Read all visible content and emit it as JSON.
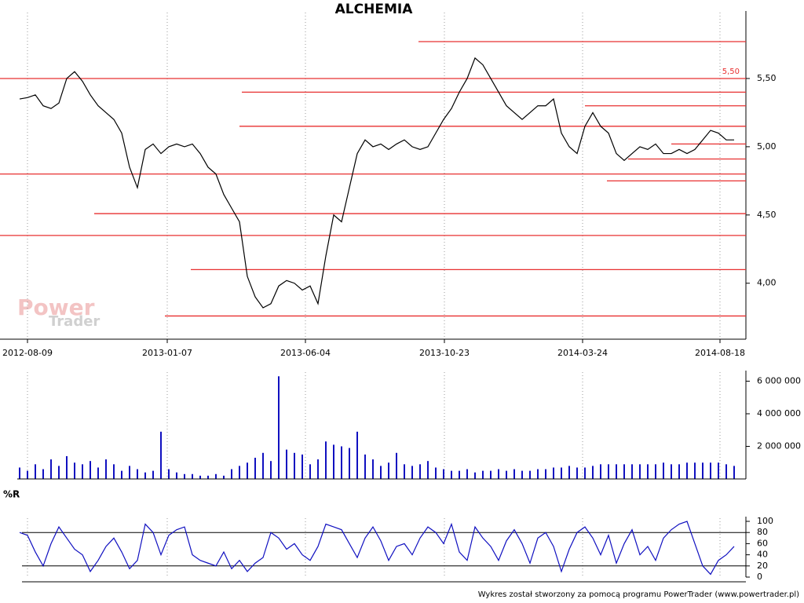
{
  "chart_data": [
    {
      "type": "line",
      "title": "ALCHEMIA",
      "color": "#000000",
      "values": [
        5.35,
        5.36,
        5.38,
        5.3,
        5.28,
        5.32,
        5.5,
        5.55,
        5.48,
        5.38,
        5.3,
        5.25,
        5.2,
        5.1,
        4.85,
        4.7,
        4.98,
        5.02,
        4.95,
        5.0,
        5.02,
        5.0,
        5.02,
        4.95,
        4.85,
        4.8,
        4.65,
        4.55,
        4.45,
        4.05,
        3.9,
        3.82,
        3.85,
        3.98,
        4.02,
        4.0,
        3.95,
        3.98,
        3.85,
        4.2,
        4.5,
        4.45,
        4.7,
        4.95,
        5.05,
        5.0,
        5.02,
        4.98,
        5.02,
        5.05,
        5.0,
        4.98,
        5.0,
        5.1,
        5.2,
        5.28,
        5.4,
        5.5,
        5.65,
        5.6,
        5.5,
        5.4,
        5.3,
        5.25,
        5.2,
        5.25,
        5.3,
        5.3,
        5.35,
        5.1,
        5.0,
        4.95,
        5.15,
        5.25,
        5.15,
        5.1,
        4.95,
        4.9,
        4.95,
        5.0,
        4.98,
        5.02,
        4.95,
        4.95,
        4.98,
        4.95,
        4.98,
        5.05,
        5.12,
        5.1,
        5.05,
        5.05
      ],
      "xlim": [
        -2.5,
        92.5
      ],
      "xticks": [
        {
          "value": 1,
          "label": "2012-08-09"
        },
        {
          "value": 18.8,
          "label": "2013-01-07"
        },
        {
          "value": 36.4,
          "label": "2013-06-04"
        },
        {
          "value": 54.1,
          "label": "2013-10-23"
        },
        {
          "value": 71.7,
          "label": "2014-03-24"
        },
        {
          "value": 89.2,
          "label": "2014-08-18"
        }
      ],
      "ylim": [
        3.59,
        5.96
      ],
      "yticks": [
        {
          "value": 4.0,
          "label": "4,00"
        },
        {
          "value": 4.5,
          "label": "4,50"
        },
        {
          "value": 5.0,
          "label": "5,00"
        },
        {
          "value": 5.5,
          "label": "5,50"
        }
      ],
      "hlines": [
        5.77,
        {
          "value": 5.5,
          "label": "5,50"
        },
        5.4,
        5.3,
        5.15,
        5.02,
        4.91,
        4.8,
        4.75,
        4.51,
        4.35,
        4.1,
        3.76
      ],
      "hline_color": "#e83030",
      "grid": true
    },
    {
      "type": "bar",
      "color": "#1010c0",
      "values": [
        700000,
        500000,
        900000,
        600000,
        1200000,
        800000,
        1400000,
        1000000,
        900000,
        1100000,
        700000,
        1200000,
        900000,
        500000,
        800000,
        600000,
        400000,
        500000,
        2900000,
        600000,
        400000,
        300000,
        300000,
        200000,
        200000,
        300000,
        200000,
        600000,
        800000,
        1000000,
        1300000,
        1600000,
        1100000,
        6300000,
        1800000,
        1600000,
        1500000,
        900000,
        1200000,
        2300000,
        2100000,
        2000000,
        1900000,
        2900000,
        1500000,
        1200000,
        800000,
        1000000,
        1600000,
        900000,
        800000,
        900000,
        1100000,
        700000,
        600000,
        500000,
        500000,
        600000,
        400000,
        500000,
        500000,
        600000,
        500000,
        600000,
        500000,
        500000,
        600000,
        600000,
        700000,
        700000,
        800000,
        700000,
        700000,
        800000,
        900000,
        900000,
        900000,
        900000,
        900000,
        900000,
        900000,
        900000,
        1000000,
        900000,
        900000,
        1000000,
        1000000,
        1000000,
        1000000,
        1000000,
        900000,
        800000
      ],
      "xlim": [
        -2.5,
        92.5
      ],
      "ylim": [
        0,
        6360000
      ],
      "yticks": [
        {
          "value": 2000000,
          "label": "2 000 000"
        },
        {
          "value": 4000000,
          "label": "4 000 000"
        },
        {
          "value": 6000000,
          "label": "6 000 000"
        }
      ],
      "grid": true
    },
    {
      "type": "line",
      "title": "%R",
      "color": "#1010c0",
      "values": [
        80,
        75,
        45,
        20,
        60,
        90,
        70,
        50,
        40,
        10,
        30,
        55,
        70,
        45,
        15,
        30,
        95,
        80,
        40,
        75,
        85,
        90,
        40,
        30,
        25,
        20,
        45,
        15,
        30,
        10,
        25,
        35,
        80,
        70,
        50,
        60,
        40,
        30,
        55,
        95,
        90,
        85,
        60,
        35,
        70,
        90,
        65,
        30,
        55,
        60,
        40,
        70,
        90,
        80,
        60,
        95,
        45,
        30,
        90,
        70,
        55,
        30,
        65,
        85,
        60,
        25,
        70,
        80,
        55,
        10,
        50,
        80,
        90,
        70,
        40,
        75,
        25,
        60,
        85,
        40,
        55,
        30,
        70,
        85,
        95,
        100,
        60,
        20,
        5,
        30,
        40,
        55
      ],
      "xlim": [
        -2.5,
        92.5
      ],
      "ylim": [
        0,
        100
      ],
      "yticks": [
        0,
        20,
        40,
        60,
        80,
        100
      ],
      "hlines": [
        80,
        20
      ],
      "hline_color": "#000000",
      "grid": true
    }
  ],
  "watermark": {
    "line1": "Power",
    "line2": "Trader"
  },
  "footer": "Wykres został stworzony za pomocą programu PowerTrader (www.powertrader.pl)"
}
